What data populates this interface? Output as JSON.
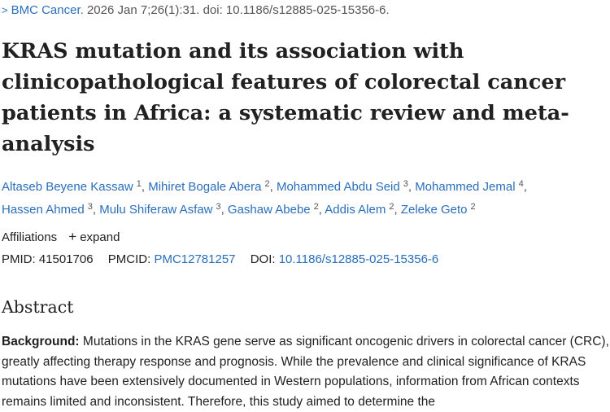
{
  "citation": {
    "chevron": ">",
    "journal": "BMC Cancer.",
    "details": "2026 Jan 7;26(1):31. doi: 10.1186/s12885-025-15356-6."
  },
  "article": {
    "title_lines": [
      "KRAS mutation and its association with",
      "clinicopathological features of colorectal cancer",
      "patients in Africa: a systematic review and meta-",
      "analysis"
    ]
  },
  "authors": [
    {
      "name": "Altaseb Beyene Kassaw",
      "sup": "1"
    },
    {
      "name": "Mihiret Bogale Abera",
      "sup": "2"
    },
    {
      "name": "Mohammed Abdu Seid",
      "sup": "3"
    },
    {
      "name": "Mohammed Jemal",
      "sup": "4"
    },
    {
      "name": "Hassen Ahmed",
      "sup": "3"
    },
    {
      "name": "Mulu Shiferaw Asfaw",
      "sup": "3"
    },
    {
      "name": "Gashaw Abebe",
      "sup": "2"
    },
    {
      "name": "Addis Alem",
      "sup": "2"
    },
    {
      "name": "Zeleke Geto",
      "sup": "2"
    }
  ],
  "affiliations": {
    "label": "Affiliations",
    "expand_icon": "+",
    "expand_label": "expand"
  },
  "ids": {
    "pmid_label": "PMID:",
    "pmid": "41501706",
    "pmcid_label": "PMCID:",
    "pmcid": "PMC12781257",
    "doi_label": "DOI:",
    "doi": "10.1186/s12885-025-15356-6"
  },
  "abstract": {
    "heading": "Abstract",
    "background_label": "Background:",
    "background_text": "Mutations in the KRAS gene serve as significant oncogenic drivers in colorectal cancer (CRC), greatly affecting therapy response and prognosis. While the prevalence and clinical significance of KRAS mutations have been extensively documented in Western populations, information from African contexts remains limited and inconsistent. Therefore, this study aimed to determine the"
  },
  "colors": {
    "link": "#2a6ebb",
    "text": "#212121",
    "muted": "#555555"
  }
}
